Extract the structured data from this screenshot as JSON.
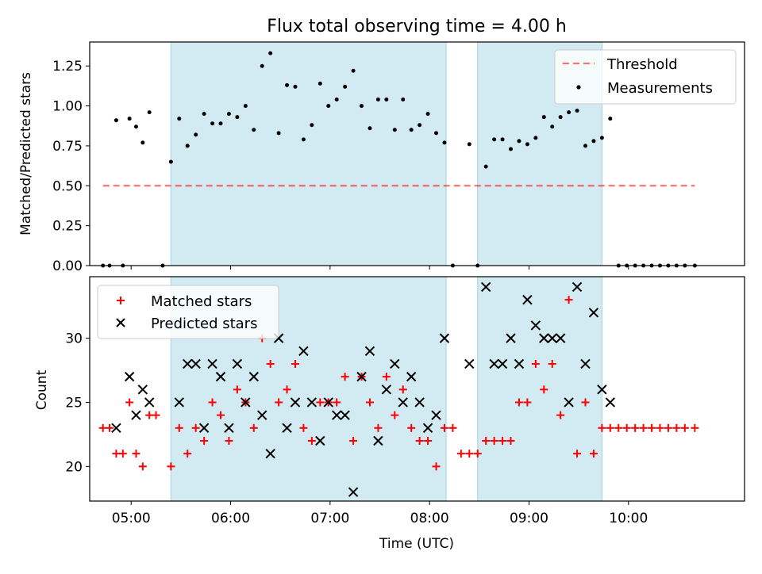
{
  "figure": {
    "title": "Flux total observing time = 4.00 h"
  },
  "colors": {
    "shade": "#add8e6",
    "threshold": "#ff0000",
    "measurement": "#000000",
    "matched": "#ff0000",
    "predicted": "#000000"
  },
  "chart_data": [
    {
      "type": "scatter",
      "title": "Flux total observing time = 4.00 h",
      "xlabel": "",
      "ylabel": "Matched/Predicted stars",
      "xlim": [
        "04:35",
        "11:10"
      ],
      "ylim": [
        0,
        1.4
      ],
      "xticks": [
        "05:00",
        "06:00",
        "07:00",
        "08:00",
        "09:00",
        "10:00"
      ],
      "yticks": [
        0.0,
        0.25,
        0.5,
        0.75,
        1.0,
        1.25
      ],
      "ytick_labels": [
        "0.00",
        "0.25",
        "0.50",
        "0.75",
        "1.00",
        "1.25"
      ],
      "legend": {
        "placement": "top-right",
        "entries": [
          "Threshold",
          "Measurements"
        ]
      },
      "shaded_spans": [
        [
          "05:24",
          "08:10"
        ],
        [
          "08:29",
          "09:44"
        ]
      ],
      "threshold": {
        "name": "Threshold",
        "value": 0.5,
        "x_start": "04:43",
        "x_end": "10:40"
      },
      "series": [
        {
          "name": "Measurements",
          "points": [
            [
              "04:43",
              0.0
            ],
            [
              "04:47",
              0.0
            ],
            [
              "04:51",
              0.91
            ],
            [
              "04:55",
              0.0
            ],
            [
              "04:59",
              0.92
            ],
            [
              "05:03",
              0.87
            ],
            [
              "05:07",
              0.77
            ],
            [
              "05:11",
              0.96
            ],
            [
              "05:19",
              0.0
            ],
            [
              "05:24",
              0.65
            ],
            [
              "05:29",
              0.92
            ],
            [
              "05:34",
              0.75
            ],
            [
              "05:39",
              0.82
            ],
            [
              "05:44",
              0.95
            ],
            [
              "05:49",
              0.89
            ],
            [
              "05:54",
              0.89
            ],
            [
              "05:59",
              0.95
            ],
            [
              "06:04",
              0.93
            ],
            [
              "06:09",
              1.0
            ],
            [
              "06:14",
              0.85
            ],
            [
              "06:19",
              1.25
            ],
            [
              "06:24",
              1.33
            ],
            [
              "06:29",
              0.83
            ],
            [
              "06:34",
              1.13
            ],
            [
              "06:39",
              1.12
            ],
            [
              "06:44",
              0.79
            ],
            [
              "06:49",
              0.88
            ],
            [
              "06:54",
              1.14
            ],
            [
              "06:59",
              1.0
            ],
            [
              "07:04",
              1.04
            ],
            [
              "07:09",
              1.12
            ],
            [
              "07:14",
              1.22
            ],
            [
              "07:19",
              1.0
            ],
            [
              "07:24",
              0.86
            ],
            [
              "07:29",
              1.04
            ],
            [
              "07:34",
              1.04
            ],
            [
              "07:39",
              0.85
            ],
            [
              "07:44",
              1.04
            ],
            [
              "07:49",
              0.85
            ],
            [
              "07:54",
              0.88
            ],
            [
              "07:59",
              0.95
            ],
            [
              "08:04",
              0.83
            ],
            [
              "08:09",
              0.77
            ],
            [
              "08:14",
              0.0
            ],
            [
              "08:24",
              0.76
            ],
            [
              "08:29",
              0.0
            ],
            [
              "08:34",
              0.62
            ],
            [
              "08:39",
              0.79
            ],
            [
              "08:44",
              0.79
            ],
            [
              "08:49",
              0.73
            ],
            [
              "08:54",
              0.78
            ],
            [
              "08:59",
              0.76
            ],
            [
              "09:04",
              0.8
            ],
            [
              "09:09",
              0.93
            ],
            [
              "09:14",
              0.87
            ],
            [
              "09:19",
              0.93
            ],
            [
              "09:24",
              0.96
            ],
            [
              "09:29",
              0.97
            ],
            [
              "09:34",
              0.75
            ],
            [
              "09:39",
              0.78
            ],
            [
              "09:44",
              0.8
            ],
            [
              "09:49",
              0.92
            ],
            [
              "09:54",
              0.0
            ],
            [
              "09:59",
              0.0
            ],
            [
              "10:04",
              0.0
            ],
            [
              "10:09",
              0.0
            ],
            [
              "10:14",
              0.0
            ],
            [
              "10:19",
              0.0
            ],
            [
              "10:24",
              0.0
            ],
            [
              "10:29",
              0.0
            ],
            [
              "10:34",
              0.0
            ],
            [
              "10:40",
              0.0
            ]
          ]
        }
      ]
    },
    {
      "type": "scatter",
      "title": "",
      "xlabel": "Time (UTC)",
      "ylabel": "Count",
      "xlim": [
        "04:35",
        "11:10"
      ],
      "ylim": [
        17.3,
        34.8
      ],
      "xticks": [
        "05:00",
        "06:00",
        "07:00",
        "08:00",
        "09:00",
        "10:00"
      ],
      "yticks": [
        20,
        25,
        30
      ],
      "ytick_labels": [
        "20",
        "25",
        "30"
      ],
      "legend": {
        "placement": "top-left",
        "entries": [
          "Matched stars",
          "Predicted stars"
        ]
      },
      "shaded_spans": [
        [
          "05:24",
          "08:10"
        ],
        [
          "08:29",
          "09:44"
        ]
      ],
      "series": [
        {
          "name": "Matched stars",
          "marker": "plus",
          "points": [
            [
              "04:43",
              23
            ],
            [
              "04:47",
              23
            ],
            [
              "04:51",
              21
            ],
            [
              "04:55",
              21
            ],
            [
              "04:59",
              25
            ],
            [
              "05:03",
              21
            ],
            [
              "05:07",
              20
            ],
            [
              "05:11",
              24
            ],
            [
              "05:15",
              24
            ],
            [
              "05:24",
              20
            ],
            [
              "05:29",
              23
            ],
            [
              "05:34",
              21
            ],
            [
              "05:39",
              23
            ],
            [
              "05:44",
              22
            ],
            [
              "05:49",
              25
            ],
            [
              "05:54",
              24
            ],
            [
              "05:59",
              22
            ],
            [
              "06:04",
              26
            ],
            [
              "06:09",
              25
            ],
            [
              "06:14",
              23
            ],
            [
              "06:19",
              30
            ],
            [
              "06:24",
              28
            ],
            [
              "06:29",
              25
            ],
            [
              "06:34",
              26
            ],
            [
              "06:39",
              28
            ],
            [
              "06:44",
              23
            ],
            [
              "06:49",
              22
            ],
            [
              "06:54",
              25
            ],
            [
              "06:59",
              25
            ],
            [
              "07:04",
              25
            ],
            [
              "07:09",
              27
            ],
            [
              "07:14",
              22
            ],
            [
              "07:19",
              27
            ],
            [
              "07:24",
              25
            ],
            [
              "07:29",
              23
            ],
            [
              "07:34",
              27
            ],
            [
              "07:39",
              24
            ],
            [
              "07:44",
              26
            ],
            [
              "07:49",
              23
            ],
            [
              "07:54",
              22
            ],
            [
              "07:59",
              22
            ],
            [
              "08:04",
              20
            ],
            [
              "08:09",
              23
            ],
            [
              "08:14",
              23
            ],
            [
              "08:19",
              21
            ],
            [
              "08:24",
              21
            ],
            [
              "08:29",
              21
            ],
            [
              "08:34",
              22
            ],
            [
              "08:39",
              22
            ],
            [
              "08:44",
              22
            ],
            [
              "08:49",
              22
            ],
            [
              "08:54",
              25
            ],
            [
              "08:59",
              25
            ],
            [
              "09:04",
              28
            ],
            [
              "09:09",
              26
            ],
            [
              "09:14",
              28
            ],
            [
              "09:19",
              24
            ],
            [
              "09:24",
              33
            ],
            [
              "09:29",
              21
            ],
            [
              "09:34",
              25
            ],
            [
              "09:39",
              21
            ],
            [
              "09:44",
              23
            ],
            [
              "09:49",
              23
            ],
            [
              "09:54",
              23
            ],
            [
              "09:59",
              23
            ],
            [
              "10:04",
              23
            ],
            [
              "10:09",
              23
            ],
            [
              "10:14",
              23
            ],
            [
              "10:19",
              23
            ],
            [
              "10:24",
              23
            ],
            [
              "10:29",
              23
            ],
            [
              "10:34",
              23
            ],
            [
              "10:40",
              23
            ]
          ]
        },
        {
          "name": "Predicted stars",
          "marker": "x",
          "points": [
            [
              "04:51",
              23
            ],
            [
              "04:59",
              27
            ],
            [
              "05:03",
              24
            ],
            [
              "05:07",
              26
            ],
            [
              "05:11",
              25
            ],
            [
              "05:29",
              25
            ],
            [
              "05:34",
              28
            ],
            [
              "05:39",
              28
            ],
            [
              "05:44",
              23
            ],
            [
              "05:49",
              28
            ],
            [
              "05:54",
              27
            ],
            [
              "05:59",
              23
            ],
            [
              "06:04",
              28
            ],
            [
              "06:09",
              25
            ],
            [
              "06:14",
              27
            ],
            [
              "06:19",
              24
            ],
            [
              "06:24",
              21
            ],
            [
              "06:29",
              30
            ],
            [
              "06:34",
              23
            ],
            [
              "06:39",
              25
            ],
            [
              "06:44",
              29
            ],
            [
              "06:49",
              25
            ],
            [
              "06:54",
              22
            ],
            [
              "06:59",
              25
            ],
            [
              "07:04",
              24
            ],
            [
              "07:09",
              24
            ],
            [
              "07:14",
              18
            ],
            [
              "07:19",
              27
            ],
            [
              "07:24",
              29
            ],
            [
              "07:29",
              22
            ],
            [
              "07:34",
              26
            ],
            [
              "07:39",
              28
            ],
            [
              "07:44",
              25
            ],
            [
              "07:49",
              27
            ],
            [
              "07:54",
              25
            ],
            [
              "07:59",
              23
            ],
            [
              "08:04",
              24
            ],
            [
              "08:09",
              30
            ],
            [
              "08:24",
              28
            ],
            [
              "08:34",
              34
            ],
            [
              "08:39",
              28
            ],
            [
              "08:44",
              28
            ],
            [
              "08:49",
              30
            ],
            [
              "08:54",
              28
            ],
            [
              "08:59",
              33
            ],
            [
              "09:04",
              31
            ],
            [
              "09:09",
              30
            ],
            [
              "09:14",
              30
            ],
            [
              "09:19",
              30
            ],
            [
              "09:24",
              25
            ],
            [
              "09:29",
              34
            ],
            [
              "09:34",
              28
            ],
            [
              "09:39",
              32
            ],
            [
              "09:44",
              26
            ],
            [
              "09:49",
              25
            ]
          ]
        }
      ]
    }
  ]
}
